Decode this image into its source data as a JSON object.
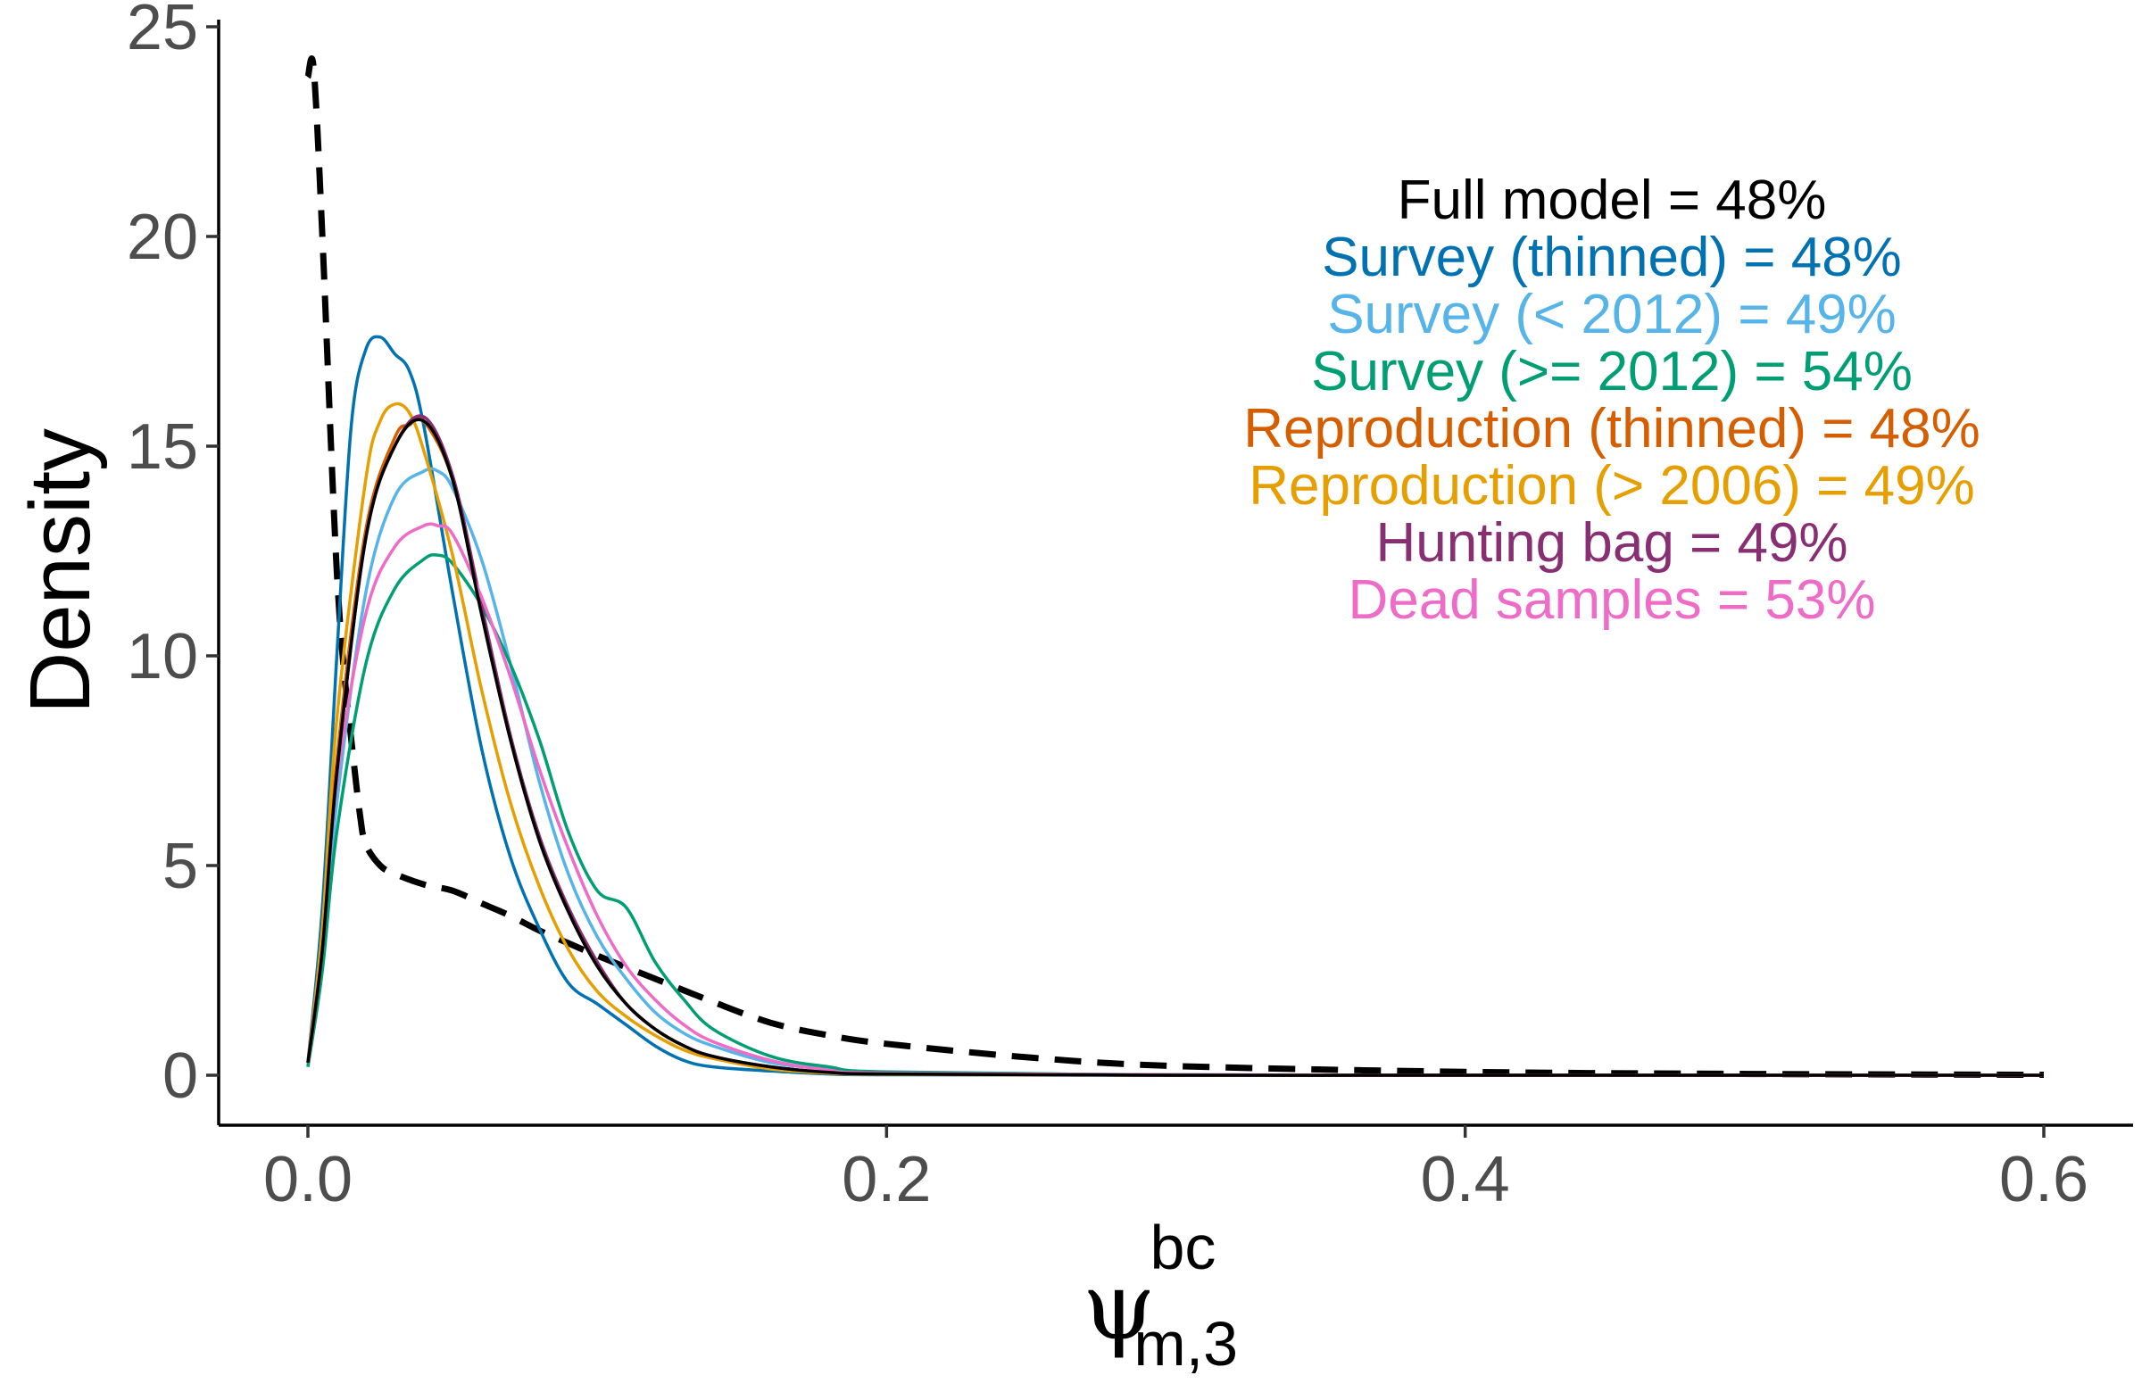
{
  "chart_data": {
    "type": "line",
    "title": "",
    "xlabel": {
      "symbol": "ψ",
      "superscript": "bc",
      "subscript": "m,3"
    },
    "ylabel": "Density",
    "xlim": [
      0.0,
      0.6
    ],
    "ylim": [
      0,
      25
    ],
    "x_ticks": [
      0.0,
      0.2,
      0.4,
      0.6
    ],
    "x_tick_labels": [
      "0.0",
      "0.2",
      "0.4",
      "0.6"
    ],
    "y_ticks": [
      0,
      5,
      10,
      15,
      20,
      25
    ],
    "y_tick_labels": [
      "0",
      "5",
      "10",
      "15",
      "20",
      "25"
    ],
    "grid": false,
    "legend": "none",
    "series": [
      {
        "key": "prior",
        "dash": true,
        "color": "#000000",
        "x": [
          0.0,
          0.002,
          0.005,
          0.008,
          0.01,
          0.012,
          0.015,
          0.018,
          0.02,
          0.025,
          0.03,
          0.04,
          0.05,
          0.06,
          0.07,
          0.08,
          0.09,
          0.1,
          0.12,
          0.14,
          0.16,
          0.18,
          0.2,
          0.25,
          0.3,
          0.4,
          0.5,
          0.6
        ],
        "y": [
          23.8,
          24.0,
          20.0,
          15.0,
          12.0,
          10.0,
          8.0,
          6.2,
          5.5,
          5.0,
          4.8,
          4.55,
          4.4,
          4.1,
          3.8,
          3.45,
          3.15,
          2.85,
          2.3,
          1.75,
          1.25,
          0.95,
          0.75,
          0.42,
          0.22,
          0.08,
          0.03,
          0.01
        ]
      },
      {
        "key": "survey-thinned",
        "color": "#0072B2",
        "x": [
          0.0,
          0.005,
          0.01,
          0.015,
          0.02,
          0.025,
          0.03,
          0.035,
          0.04,
          0.05,
          0.06,
          0.07,
          0.08,
          0.09,
          0.1,
          0.11,
          0.12,
          0.13,
          0.14,
          0.16,
          0.18,
          0.2,
          0.3,
          0.4,
          0.5,
          0.6
        ],
        "y": [
          0.3,
          4.0,
          10.0,
          15.5,
          17.3,
          17.6,
          17.2,
          16.8,
          15.5,
          11.5,
          7.8,
          5.2,
          3.5,
          2.2,
          1.7,
          1.2,
          0.7,
          0.35,
          0.2,
          0.1,
          0.03,
          0.01,
          0.0,
          0.0,
          0.0,
          0.0
        ]
      },
      {
        "key": "survey-lt2012",
        "color": "#56B4E9",
        "x": [
          0.0,
          0.005,
          0.01,
          0.02,
          0.03,
          0.04,
          0.045,
          0.05,
          0.06,
          0.07,
          0.08,
          0.09,
          0.1,
          0.11,
          0.12,
          0.13,
          0.14,
          0.16,
          0.18,
          0.2,
          0.3,
          0.4,
          0.5,
          0.6
        ],
        "y": [
          0.2,
          2.8,
          6.5,
          11.5,
          13.8,
          14.4,
          14.4,
          14.0,
          12.3,
          9.8,
          7.0,
          4.8,
          3.3,
          2.3,
          1.5,
          1.0,
          0.7,
          0.3,
          0.15,
          0.07,
          0.01,
          0.0,
          0.0,
          0.0
        ]
      },
      {
        "key": "survey-ge2012",
        "color": "#009E73",
        "x": [
          0.0,
          0.005,
          0.01,
          0.02,
          0.03,
          0.04,
          0.045,
          0.05,
          0.06,
          0.07,
          0.08,
          0.09,
          0.1,
          0.11,
          0.12,
          0.13,
          0.14,
          0.16,
          0.18,
          0.2,
          0.3,
          0.4,
          0.5,
          0.6
        ],
        "y": [
          0.2,
          2.5,
          5.8,
          9.8,
          11.6,
          12.3,
          12.4,
          12.2,
          11.2,
          9.8,
          8.0,
          5.8,
          4.4,
          4.0,
          2.7,
          1.8,
          1.1,
          0.45,
          0.2,
          0.08,
          0.01,
          0.0,
          0.0,
          0.0
        ]
      },
      {
        "key": "reproduction-thinned",
        "color": "#D55E00",
        "x": [
          0.0,
          0.005,
          0.01,
          0.02,
          0.03,
          0.035,
          0.04,
          0.05,
          0.06,
          0.07,
          0.08,
          0.09,
          0.1,
          0.11,
          0.12,
          0.13,
          0.14,
          0.16,
          0.18,
          0.2,
          0.3,
          0.4,
          0.5,
          0.6
        ],
        "y": [
          0.3,
          3.0,
          7.5,
          13.0,
          15.2,
          15.5,
          15.6,
          14.2,
          11.0,
          8.0,
          5.6,
          3.9,
          2.6,
          1.7,
          1.1,
          0.7,
          0.45,
          0.2,
          0.07,
          0.03,
          0.0,
          0.0,
          0.0,
          0.0
        ]
      },
      {
        "key": "reproduction-gt2006",
        "color": "#E69F00",
        "x": [
          0.0,
          0.005,
          0.01,
          0.02,
          0.025,
          0.03,
          0.035,
          0.04,
          0.05,
          0.06,
          0.07,
          0.08,
          0.09,
          0.1,
          0.11,
          0.12,
          0.13,
          0.14,
          0.16,
          0.18,
          0.2,
          0.3,
          0.4,
          0.5,
          0.6
        ],
        "y": [
          0.3,
          3.5,
          8.5,
          14.2,
          15.6,
          16.0,
          15.8,
          14.9,
          12.4,
          9.2,
          6.5,
          4.5,
          3.0,
          2.0,
          1.4,
          0.95,
          0.6,
          0.4,
          0.15,
          0.05,
          0.02,
          0.0,
          0.0,
          0.0,
          0.0
        ]
      },
      {
        "key": "hunting-bag",
        "color": "#882E72",
        "x": [
          0.0,
          0.005,
          0.01,
          0.02,
          0.03,
          0.04,
          0.05,
          0.06,
          0.07,
          0.08,
          0.09,
          0.1,
          0.11,
          0.12,
          0.13,
          0.14,
          0.16,
          0.18,
          0.2,
          0.3,
          0.4,
          0.5,
          0.6
        ],
        "y": [
          0.3,
          3.0,
          7.2,
          12.8,
          15.0,
          15.7,
          14.3,
          11.2,
          8.1,
          5.7,
          4.0,
          2.7,
          1.7,
          1.1,
          0.7,
          0.45,
          0.2,
          0.07,
          0.03,
          0.0,
          0.0,
          0.0,
          0.0
        ]
      },
      {
        "key": "dead-samples",
        "color": "#EE6BC8",
        "x": [
          0.0,
          0.005,
          0.01,
          0.02,
          0.03,
          0.04,
          0.045,
          0.05,
          0.06,
          0.07,
          0.08,
          0.09,
          0.1,
          0.11,
          0.12,
          0.13,
          0.14,
          0.16,
          0.18,
          0.2,
          0.3,
          0.4,
          0.5,
          0.6
        ],
        "y": [
          0.3,
          3.0,
          7.0,
          11.0,
          12.6,
          13.1,
          13.1,
          12.9,
          11.4,
          9.5,
          7.3,
          5.4,
          3.8,
          2.6,
          1.8,
          1.2,
          0.8,
          0.35,
          0.12,
          0.05,
          0.01,
          0.0,
          0.0,
          0.0
        ]
      },
      {
        "key": "full-model",
        "color": "#000000",
        "x": [
          0.0,
          0.005,
          0.01,
          0.02,
          0.03,
          0.04,
          0.05,
          0.06,
          0.07,
          0.08,
          0.09,
          0.1,
          0.11,
          0.12,
          0.13,
          0.14,
          0.16,
          0.18,
          0.2,
          0.3,
          0.4,
          0.5,
          0.6
        ],
        "y": [
          0.3,
          3.0,
          7.2,
          12.8,
          15.0,
          15.6,
          14.2,
          11.0,
          8.0,
          5.6,
          3.9,
          2.6,
          1.7,
          1.1,
          0.7,
          0.45,
          0.2,
          0.07,
          0.03,
          0.0,
          0.0,
          0.0,
          0.0
        ]
      }
    ],
    "annotations": [
      {
        "text": "Full model = 48%",
        "color": "#000000"
      },
      {
        "text": "Survey (thinned) = 48%",
        "color": "#0072B2"
      },
      {
        "text": "Survey (< 2012) = 49%",
        "color": "#56B4E9"
      },
      {
        "text": "Survey (>= 2012) = 54%",
        "color": "#009E73"
      },
      {
        "text": "Reproduction (thinned) = 48%",
        "color": "#D55E00"
      },
      {
        "text": "Reproduction (> 2006) = 49%",
        "color": "#E69F00"
      },
      {
        "text": "Hunting bag = 49%",
        "color": "#882E72"
      },
      {
        "text": "Dead samples = 53%",
        "color": "#EE6BC8"
      }
    ]
  }
}
